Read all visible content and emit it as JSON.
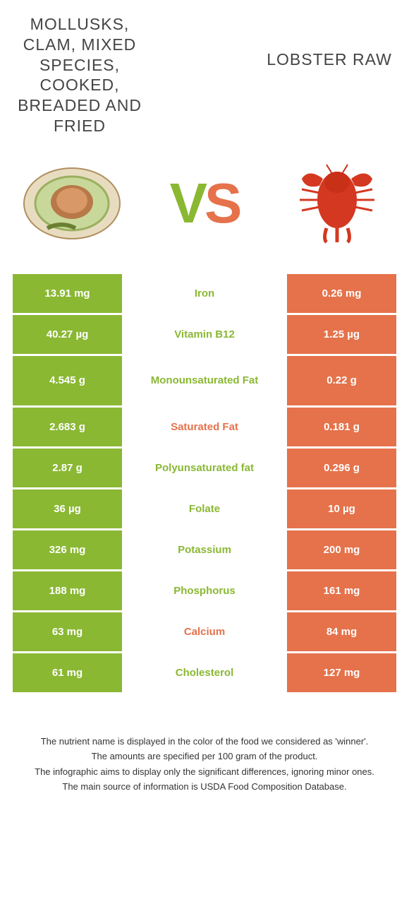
{
  "leftTitle": "MOLLUSKS, CLAM, MIXED SPECIES, COOKED, BREADED AND FRIED",
  "rightTitle": "LOBSTER RAW",
  "vsV": "V",
  "vsS": "S",
  "colors": {
    "left": "#8ab833",
    "right": "#e5724b"
  },
  "rows": [
    {
      "left": "13.91 mg",
      "label": "Iron",
      "right": "0.26 mg",
      "winner": "left",
      "tall": false
    },
    {
      "left": "40.27 µg",
      "label": "Vitamin B12",
      "right": "1.25 µg",
      "winner": "left",
      "tall": false
    },
    {
      "left": "4.545 g",
      "label": "Monounsaturated Fat",
      "right": "0.22 g",
      "winner": "left",
      "tall": true
    },
    {
      "left": "2.683 g",
      "label": "Saturated Fat",
      "right": "0.181 g",
      "winner": "right",
      "tall": false
    },
    {
      "left": "2.87 g",
      "label": "Polyunsaturated fat",
      "right": "0.296 g",
      "winner": "left",
      "tall": false
    },
    {
      "left": "36 µg",
      "label": "Folate",
      "right": "10 µg",
      "winner": "left",
      "tall": false
    },
    {
      "left": "326 mg",
      "label": "Potassium",
      "right": "200 mg",
      "winner": "left",
      "tall": false
    },
    {
      "left": "188 mg",
      "label": "Phosphorus",
      "right": "161 mg",
      "winner": "left",
      "tall": false
    },
    {
      "left": "63 mg",
      "label": "Calcium",
      "right": "84 mg",
      "winner": "right",
      "tall": false
    },
    {
      "left": "61 mg",
      "label": "Cholesterol",
      "right": "127 mg",
      "winner": "left",
      "tall": false
    }
  ],
  "footer": [
    "The nutrient name is displayed in the color of the food we considered as 'winner'.",
    "The amounts are specified per 100 gram of the product.",
    "The infographic aims to display only the significant differences, ignoring minor ones.",
    "The main source of information is USDA Food Composition Database."
  ]
}
